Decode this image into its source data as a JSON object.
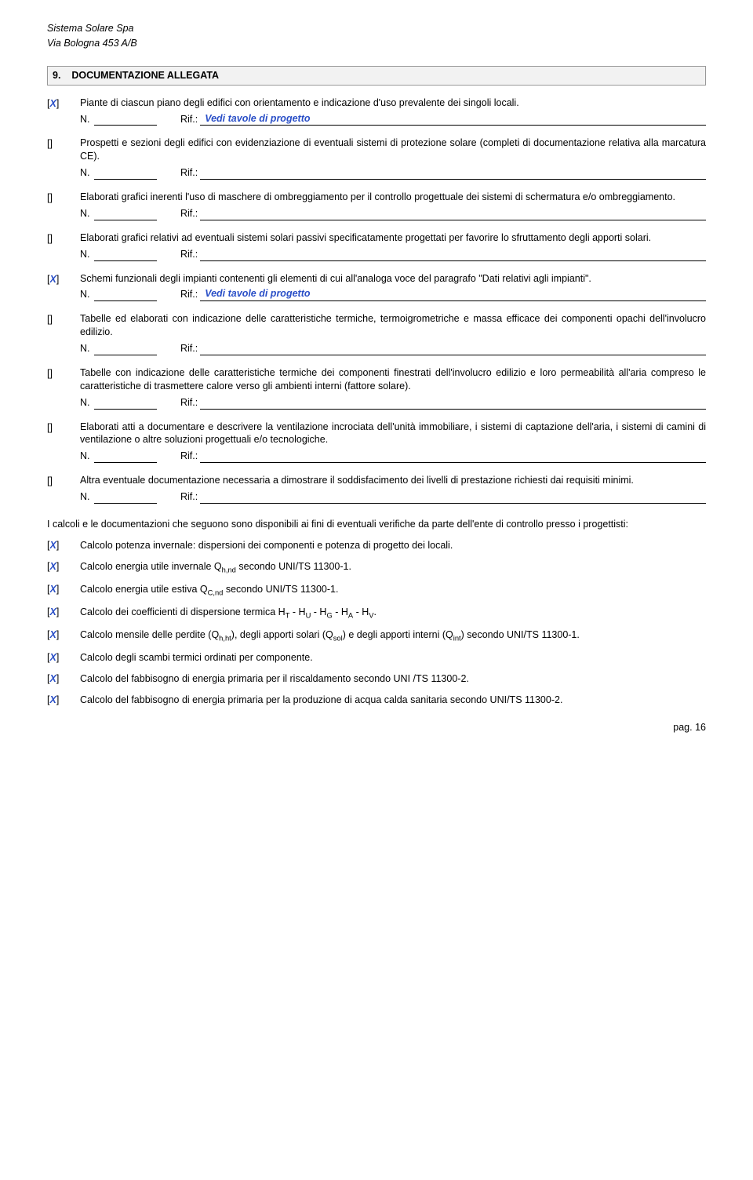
{
  "header": {
    "company": "Sistema Solare Spa",
    "address": "Via Bologna 453 A/B"
  },
  "section": {
    "number": "9.",
    "title": "DOCUMENTAZIONE ALLEGATA"
  },
  "items": [
    {
      "marker": "[X]",
      "checked": true,
      "text": "Piante di ciascun piano degli edifici con orientamento e indicazione d'uso prevalente dei singoli locali.",
      "rif": "Vedi tavole di progetto"
    },
    {
      "marker": "[]",
      "checked": false,
      "text": "Prospetti e sezioni degli edifici con evidenziazione di eventuali sistemi di protezione solare (completi di documentazione relativa alla marcatura CE).",
      "rif": ""
    },
    {
      "marker": "[]",
      "checked": false,
      "text": "Elaborati grafici inerenti l'uso di maschere di ombreggiamento per il controllo progettuale dei sistemi di schermatura e/o ombreggiamento.",
      "rif": ""
    },
    {
      "marker": "[]",
      "checked": false,
      "text": "Elaborati grafici relativi ad eventuali sistemi solari passivi specificatamente progettati per favorire lo sfruttamento degli apporti solari.",
      "rif": ""
    },
    {
      "marker": "[X]",
      "checked": true,
      "text": "Schemi funzionali degli impianti contenenti gli elementi di cui all'analoga voce del paragrafo \"Dati relativi agli impianti\".",
      "rif": "Vedi tavole di progetto"
    },
    {
      "marker": "[]",
      "checked": false,
      "text": "Tabelle ed elaborati con indicazione delle caratteristiche termiche, termoigrometriche e massa efficace dei componenti opachi dell'involucro edilizio.",
      "rif": ""
    },
    {
      "marker": "[]",
      "checked": false,
      "text": "Tabelle con indicazione delle caratteristiche termiche dei componenti finestrati dell'involucro edilizio e loro permeabilità all'aria compreso le caratteristiche di trasmettere calore verso gli ambienti interni (fattore solare).",
      "rif": ""
    },
    {
      "marker": "[]",
      "checked": false,
      "text": "Elaborati atti a documentare e descrivere la ventilazione incrociata dell'unità immobiliare, i sistemi di captazione dell'aria, i sistemi di camini di ventilazione o altre soluzioni progettuali e/o tecnologiche.",
      "rif": ""
    },
    {
      "marker": "[]",
      "checked": false,
      "text": "Altra eventuale documentazione necessaria a dimostrare il soddisfacimento dei livelli di prestazione richiesti dai requisiti minimi.",
      "rif": ""
    }
  ],
  "intro_paragraph": "I calcoli e le documentazioni che seguono sono disponibili ai fini di eventuali verifiche da parte dell'ente di controllo presso i progettisti:",
  "checks": [
    {
      "marker": "[X]",
      "text_html": "Calcolo potenza invernale: dispersioni dei componenti e potenza di progetto dei locali."
    },
    {
      "marker": "[X]",
      "text_html": "Calcolo energia utile invernale Q<sub>h,nd</sub> secondo UNI/TS 11300-1."
    },
    {
      "marker": "[X]",
      "text_html": "Calcolo energia utile estiva Q<sub>C,nd</sub> secondo UNI/TS 11300-1."
    },
    {
      "marker": "[X]",
      "text_html": "Calcolo dei coefficienti di dispersione termica H<sub>T</sub> - H<sub>U</sub> - H<sub>G</sub> - H<sub>A</sub> - H<sub>V</sub>."
    },
    {
      "marker": "[X]",
      "text_html": "Calcolo mensile delle perdite (Q<sub>h,ht</sub>), degli apporti solari (Q<sub>sol</sub>) e degli apporti interni (Q<sub>int</sub>) secondo UNI/TS 11300-1."
    },
    {
      "marker": "[X]",
      "text_html": "Calcolo degli scambi termici ordinati per componente."
    },
    {
      "marker": "[X]",
      "text_html": "Calcolo del fabbisogno di energia primaria per il riscaldamento secondo UNI /TS 11300-2."
    },
    {
      "marker": "[X]",
      "text_html": "Calcolo del fabbisogno di energia primaria per la produzione di acqua calda sanitaria secondo UNI/TS 11300-2."
    }
  ],
  "labels": {
    "n": "N.",
    "rif": "Rif.:"
  },
  "footer": {
    "page": "pag. 16"
  }
}
